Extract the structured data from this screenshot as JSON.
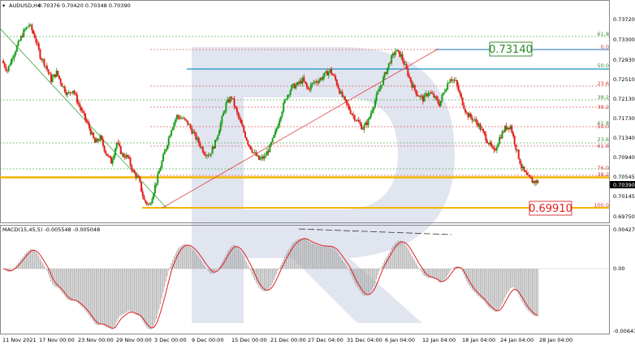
{
  "header": {
    "symbol": "AUDUSD,H4",
    "ohlc": "0.70376 0.70420 0.70348 0.70390"
  },
  "macd": {
    "label": "MACD(15,45,5) -0.005548 -0.005048",
    "axis": [
      "0.004273",
      "0.00",
      "-0.006439"
    ]
  },
  "price_axis": [
    "0.73720",
    "0.73300",
    "0.72930",
    "0.72510",
    "0.72130",
    "0.71730",
    "0.71340",
    "0.70940",
    "0.70545",
    "0.70145",
    "0.69750"
  ],
  "current_price": "0.70390",
  "date_axis": [
    "11 Nov 2021",
    "17 Nov 00:00",
    "23 Nov 00:00",
    "29 Nov 00:00",
    "3 Dec 00:00",
    "9 Dec 00:00",
    "15 Dec 00:00",
    "21 Dec 00:00",
    "27 Dec 04:00",
    "31 Dec 04:00",
    "6 Jan 04:00",
    "12 Jan 04:00",
    "18 Jan 04:00",
    "24 Jan 04:00",
    "28 Jan 04:00"
  ],
  "levels": {
    "target_high": "0.73140",
    "target_low": "0.69910"
  },
  "fib_left": {
    "labels": [
      "0.0",
      "50.0",
      "23.6",
      "38.2",
      "38.2",
      "61.8",
      "50.0",
      "23.6",
      "61.8",
      "76.0",
      "38.2",
      "100.0"
    ],
    "extra": "61.8"
  },
  "colors": {
    "bull": "#1a9e1a",
    "bear": "#e0201a",
    "gold": "#f5b400",
    "blue": "#1e6fb8",
    "watermark": "#c8d0e4"
  },
  "chart_data": {
    "type": "candlestick",
    "symbol": "AUDUSD,H4",
    "ylim": [
      0.6965,
      0.7392
    ],
    "support_levels": [
      0.7055,
      0.6991
    ],
    "resistance_levels": [
      0.7314,
      0.7275
    ],
    "path": [
      0.729,
      0.727,
      0.73,
      0.7325,
      0.735,
      0.7365,
      0.734,
      0.73,
      0.728,
      0.725,
      0.7265,
      0.724,
      0.722,
      0.723,
      0.72,
      0.7175,
      0.715,
      0.712,
      0.713,
      0.71,
      0.708,
      0.712,
      0.7095,
      0.709,
      0.706,
      0.7045,
      0.7,
      0.699,
      0.703,
      0.707,
      0.711,
      0.715,
      0.7175,
      0.717,
      0.716,
      0.714,
      0.712,
      0.71,
      0.7095,
      0.712,
      0.716,
      0.72,
      0.7215,
      0.718,
      0.715,
      0.712,
      0.71,
      0.7085,
      0.709,
      0.711,
      0.714,
      0.718,
      0.7215,
      0.7235,
      0.724,
      0.725,
      0.723,
      0.7245,
      0.725,
      0.726,
      0.727,
      0.725,
      0.722,
      0.72,
      0.718,
      0.7165,
      0.715,
      0.7165,
      0.72,
      0.723,
      0.726,
      0.729,
      0.731,
      0.73,
      0.727,
      0.724,
      0.722,
      0.721,
      0.7225,
      0.7215,
      0.72,
      0.723,
      0.7255,
      0.7245,
      0.721,
      0.718,
      0.717,
      0.716,
      0.714,
      0.712,
      0.71,
      0.713,
      0.715,
      0.7155,
      0.711,
      0.707,
      0.705,
      0.704,
      0.7039
    ]
  }
}
